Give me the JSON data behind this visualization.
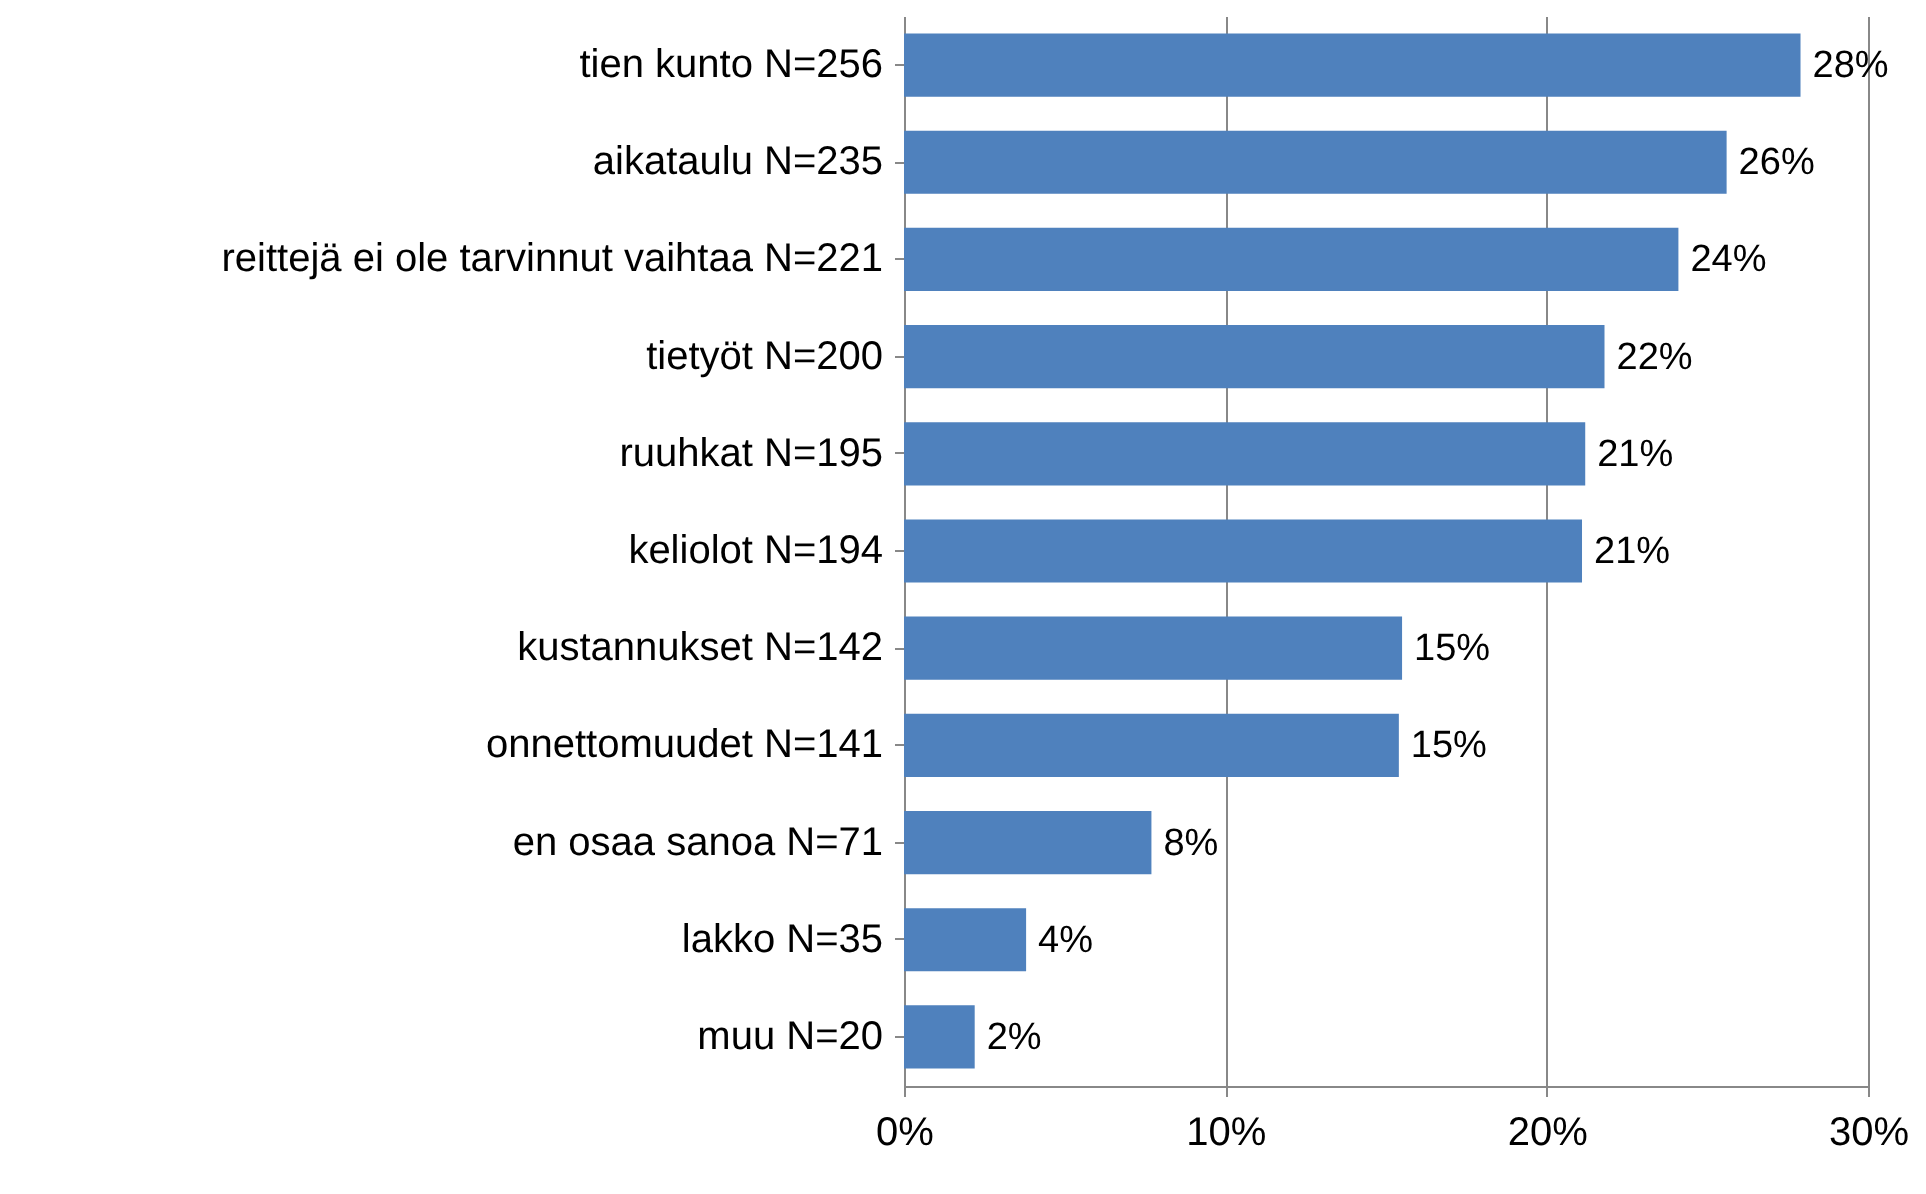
{
  "chart_data": {
    "type": "bar",
    "orientation": "horizontal",
    "categories": [
      "tien kunto N=256",
      "aikataulu N=235",
      "reittejä ei ole tarvinnut vaihtaa N=221",
      "tietyöt N=200",
      "ruuhkat N=195",
      "keliolot N=194",
      "kustannukset N=142",
      "onnettomuudet N=141",
      "en osaa sanoa N=71",
      "lakko N=35",
      "muu N=20"
    ],
    "values": [
      27.9,
      25.6,
      24.1,
      21.8,
      21.2,
      21.1,
      15.5,
      15.4,
      7.7,
      3.8,
      2.2
    ],
    "value_labels": [
      "28%",
      "26%",
      "24%",
      "22%",
      "21%",
      "21%",
      "15%",
      "15%",
      "8%",
      "4%",
      "2%"
    ],
    "color": "#4f81bd",
    "xlim": [
      0,
      30
    ],
    "xticks": [
      {
        "value": 0,
        "label": "0%"
      },
      {
        "value": 10,
        "label": "10%"
      },
      {
        "value": 20,
        "label": "20%"
      },
      {
        "value": 30,
        "label": "30%"
      }
    ],
    "grid": "x"
  }
}
